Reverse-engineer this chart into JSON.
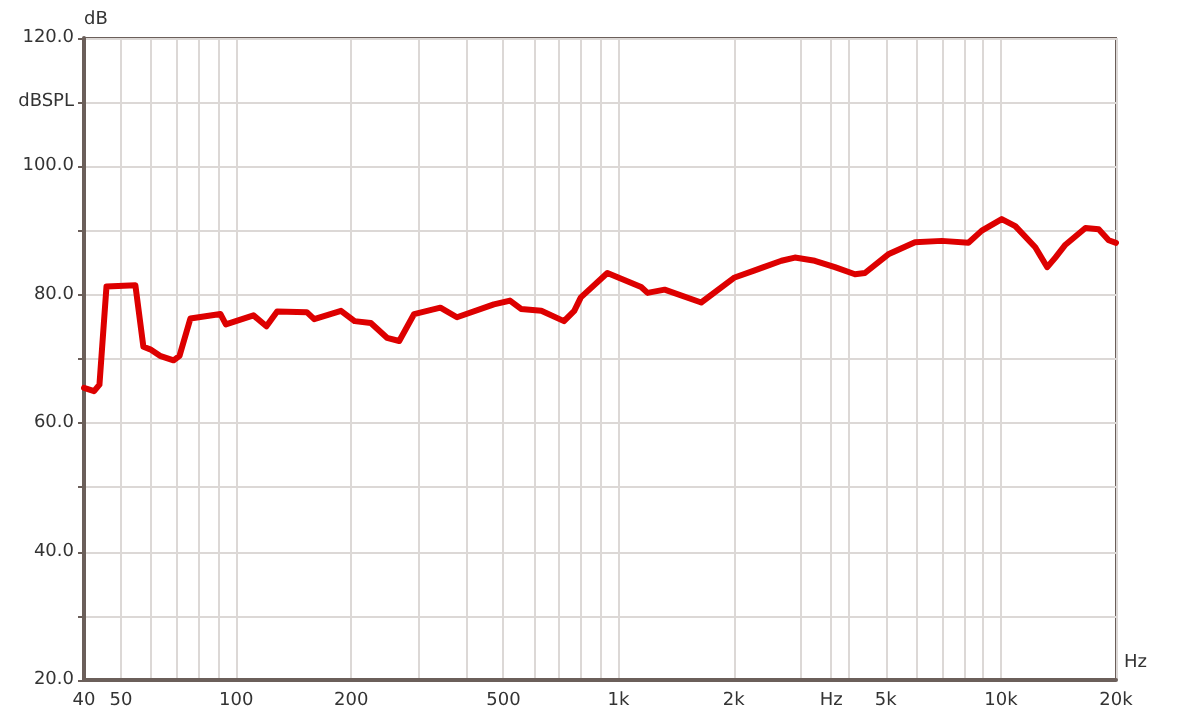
{
  "chart_data": {
    "type": "line",
    "xlabel": "Hz",
    "ylabel": "dB",
    "log": "x",
    "grid": true,
    "marker": "none",
    "line_style": "solid",
    "xlim": [
      40,
      20000
    ],
    "xticks": [
      40,
      50,
      {
        "value": 60,
        "label": null
      },
      {
        "value": 70,
        "label": null
      },
      {
        "value": 80,
        "label": null
      },
      {
        "value": 90,
        "label": null
      },
      100,
      200,
      {
        "value": 300,
        "label": null
      },
      {
        "value": 400,
        "label": null
      },
      500,
      {
        "value": 600,
        "label": null
      },
      {
        "value": 700,
        "label": null
      },
      {
        "value": 800,
        "label": null
      },
      {
        "value": 900,
        "label": null
      },
      {
        "value": 1000,
        "label": "1k"
      },
      {
        "value": 2000,
        "label": "2k"
      },
      {
        "value": 3000,
        "label": null
      },
      {
        "value": 3600,
        "label": "Hz"
      },
      {
        "value": 4000,
        "label": null
      },
      {
        "value": 5000,
        "label": "5k"
      },
      {
        "value": 6000,
        "label": null
      },
      {
        "value": 7000,
        "label": null
      },
      {
        "value": 8000,
        "label": null
      },
      {
        "value": 9000,
        "label": null
      },
      {
        "value": 10000,
        "label": "10k"
      },
      {
        "value": 20000,
        "label": "20k"
      }
    ],
    "ylim": [
      20,
      120
    ],
    "yticks": [
      {
        "value": 20,
        "label": "20.0"
      },
      {
        "value": 30,
        "label": null
      },
      {
        "value": 40,
        "label": "40.0"
      },
      {
        "value": 50,
        "label": null
      },
      {
        "value": 60,
        "label": "60.0"
      },
      {
        "value": 70,
        "label": null
      },
      {
        "value": 80,
        "label": "80.0"
      },
      {
        "value": 90,
        "label": null
      },
      {
        "value": 100,
        "label": "100.0"
      },
      {
        "value": 110,
        "label": "dBSPL"
      },
      {
        "value": 120,
        "label": "120.0"
      }
    ],
    "series": [
      {
        "color": "#dd0000",
        "x": [
          40,
          42.5,
          43.9,
          45.8,
          54.5,
          57.2,
          59.6,
          63.2,
          68.6,
          71.1,
          75.9,
          91,
          94,
          111,
          120,
          128,
          153,
          160,
          188,
          204,
          225,
          248,
          267,
          292,
          342,
          378,
          472,
          520,
          556,
          628,
          720,
          766,
          797,
          935,
          1146,
          1191,
          1320,
          1645,
          2012,
          2271,
          2667,
          2892,
          3261,
          3680,
          4153,
          4409,
          5075,
          5962,
          7004,
          8224,
          8913,
          10050,
          10906,
          12300,
          13220,
          13880,
          14750,
          16640,
          18020,
          19140,
          20000
        ],
        "values": [
          65.5,
          65,
          66,
          81.3,
          81.5,
          71.9,
          71.5,
          70.5,
          69.8,
          70.5,
          76.3,
          77,
          75.4,
          76.8,
          75.1,
          77.4,
          77.3,
          76.2,
          77.5,
          75.9,
          75.6,
          73.3,
          72.8,
          77,
          78,
          76.5,
          78.5,
          79.1,
          77.8,
          77.5,
          75.9,
          77.5,
          79.6,
          83.4,
          81.2,
          80.3,
          80.8,
          78.8,
          82.7,
          83.8,
          85.3,
          85.8,
          85.3,
          84.3,
          83.2,
          83.4,
          86.3,
          88.2,
          88.4,
          88.1,
          90,
          91.8,
          90.7,
          87.4,
          84.3,
          85.8,
          87.8,
          90.4,
          90.2,
          88.5,
          88.1
        ]
      }
    ]
  }
}
